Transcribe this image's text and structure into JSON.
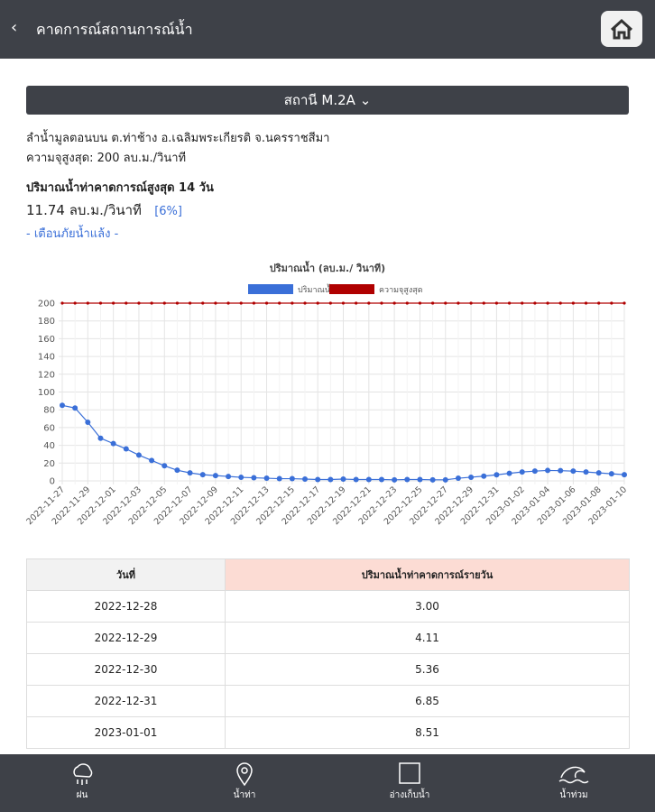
{
  "header": {
    "title": "คาดการณ์สถานการณ์น้ำ"
  },
  "station": {
    "selector": "สถานี M.2A",
    "location": "ลำน้ำมูลตอนบน ต.ท่าช้าง อ.เฉลิมพระเกียรติ จ.นครราชสีมา",
    "max_capacity": "ความจุสูงสุด: 200 ลบ.ม./วินาที"
  },
  "forecast": {
    "title": "ปริมาณน้ำท่าคาดการณ์สูงสุด 14 วัน",
    "value": "11.74 ลบ.ม./วินาที",
    "percent": "[6%]",
    "warning": "- เตือนภัยน้ำแล้ง -"
  },
  "chart_data": {
    "type": "line",
    "title": "ปริมาณน้ำ (ลบ.ม./ วินาที)",
    "categories": [
      "2022-11-27",
      null,
      "2022-11-29",
      null,
      "2022-12-01",
      null,
      "2022-12-03",
      null,
      "2022-12-05",
      null,
      "2022-12-07",
      null,
      "2022-12-09",
      null,
      "2022-12-11",
      null,
      "2022-12-13",
      null,
      "2022-12-15",
      null,
      "2022-12-17",
      null,
      "2022-12-19",
      null,
      "2022-12-21",
      null,
      "2022-12-23",
      null,
      "2022-12-25",
      null,
      "2022-12-27",
      null,
      "2022-12-29",
      null,
      "2022-12-31",
      null,
      "2023-01-02",
      null,
      "2023-01-04",
      null,
      "2023-01-06",
      null,
      "2023-01-08",
      null,
      "2023-01-10"
    ],
    "series": [
      {
        "name": "ปริมาณน้ำ",
        "color": "#3a6fd8",
        "values": [
          85,
          82,
          66,
          48,
          42,
          36,
          29,
          23,
          17,
          12,
          9,
          7,
          6,
          5,
          4,
          3.5,
          3,
          2.5,
          2.5,
          2,
          1.5,
          1.5,
          2,
          1.5,
          1.5,
          1.5,
          1.2,
          1.5,
          1.5,
          1.2,
          1.2,
          3.0,
          4.11,
          5.36,
          6.85,
          8.51,
          10,
          11,
          11.74,
          11.5,
          11,
          10,
          9,
          8,
          7
        ]
      },
      {
        "name": "ความจุสูงสุด",
        "color": "#b00000",
        "values": [
          200,
          200,
          200,
          200,
          200,
          200,
          200,
          200,
          200,
          200,
          200,
          200,
          200,
          200,
          200,
          200,
          200,
          200,
          200,
          200,
          200,
          200,
          200,
          200,
          200,
          200,
          200,
          200,
          200,
          200,
          200,
          200,
          200,
          200,
          200,
          200,
          200,
          200,
          200,
          200,
          200,
          200,
          200,
          200,
          200
        ]
      }
    ],
    "ylim": [
      0,
      200
    ],
    "yticks": [
      0,
      20,
      40,
      60,
      80,
      100,
      120,
      140,
      160,
      180,
      200
    ],
    "grid": true,
    "legend": "top"
  },
  "table": {
    "headers": [
      "วันที่",
      "ปริมาณน้ำท่าคาดการณ์รายวัน"
    ],
    "rows": [
      [
        "2022-12-28",
        "3.00"
      ],
      [
        "2022-12-29",
        "4.11"
      ],
      [
        "2022-12-30",
        "5.36"
      ],
      [
        "2022-12-31",
        "6.85"
      ],
      [
        "2023-01-01",
        "8.51"
      ]
    ]
  },
  "nav": {
    "items": [
      "ฝน",
      "น้ำท่า",
      "อ่างเก็บน้ำ",
      "น้ำท่วม"
    ]
  }
}
